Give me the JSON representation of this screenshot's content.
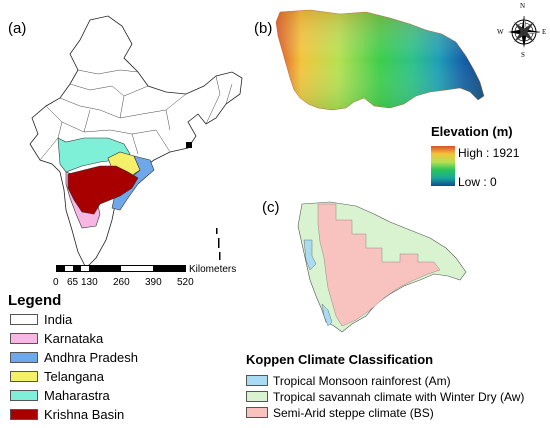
{
  "panels": {
    "a": "(a)",
    "b": "(b)",
    "c": "(c)"
  },
  "scalebar": {
    "unit": "Kilometers",
    "ticks": [
      "0",
      "65",
      "130",
      "260",
      "390",
      "520"
    ]
  },
  "legend": {
    "title": "Legend",
    "items": [
      {
        "label": "India",
        "color": "#ffffff"
      },
      {
        "label": "Karnataka",
        "color": "#f7b6e4"
      },
      {
        "label": "Andhra Pradesh",
        "color": "#6fa8ea"
      },
      {
        "label": "Telangana",
        "color": "#f5f06a"
      },
      {
        "label": "Maharastra",
        "color": "#7ff0d8"
      },
      {
        "label": "Krishna Basin",
        "color": "#a80000"
      }
    ]
  },
  "elevation": {
    "title": "Elevation (m)",
    "high": "High : 1921",
    "low": "Low : 0",
    "colors": [
      "#e06b2a",
      "#f3c43c",
      "#b6e052",
      "#28c35a",
      "#1aa89a",
      "#0b4a8f"
    ]
  },
  "compass": {
    "n": "N",
    "s": "S",
    "e": "E",
    "w": "W"
  },
  "koppen": {
    "title": "Koppen Climate Classification",
    "items": [
      {
        "label": "Tropical Monsoon rainforest (Am)",
        "color": "#a9dcf0"
      },
      {
        "label": "Tropical savannah climate with Winter Dry (Aw)",
        "color": "#d9f2cf"
      },
      {
        "label": "Semi-Arid steppe climate (BS)",
        "color": "#f8c2be"
      }
    ]
  }
}
